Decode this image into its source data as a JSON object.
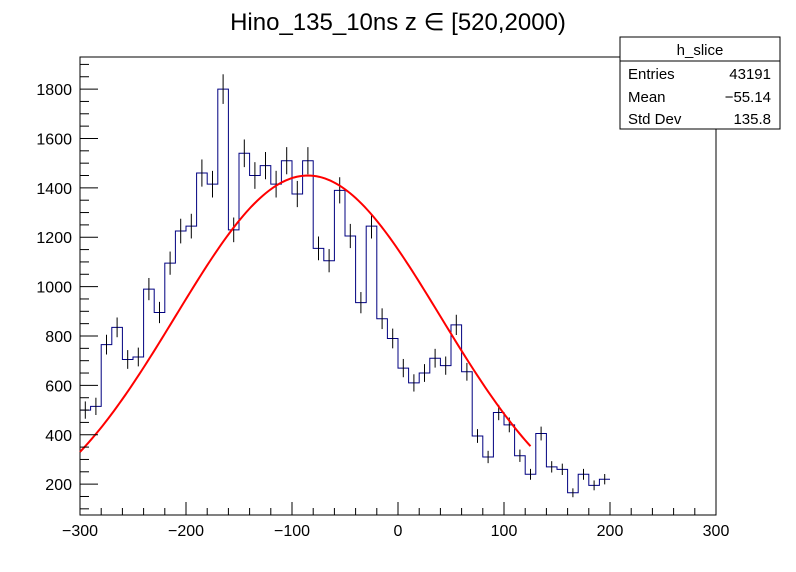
{
  "chart_data": {
    "type": "histogram",
    "title": "Hino_135_10ns z  ∈ [520,2000)",
    "xlabel": "",
    "ylabel": "",
    "xlim": [
      -300,
      300
    ],
    "ylim": [
      75,
      1930
    ],
    "x_ticks": [
      -300,
      -200,
      -100,
      0,
      100,
      200,
      300
    ],
    "x_tick_labels": [
      "−300",
      "−200",
      "−100",
      "0",
      "100",
      "200",
      "300"
    ],
    "y_ticks": [
      200,
      400,
      600,
      800,
      1000,
      1200,
      1400,
      1600,
      1800
    ],
    "y_tick_labels": [
      "200",
      "400",
      "600",
      "800",
      "1000",
      "1200",
      "1400",
      "1600",
      "1800"
    ],
    "bin_width": 10,
    "bin_edges_start": -300,
    "series": [
      {
        "name": "h_slice",
        "color": "#000080",
        "values": [
          500,
          515,
          765,
          835,
          705,
          715,
          990,
          895,
          1095,
          1225,
          1245,
          1460,
          1415,
          1800,
          1230,
          1540,
          1450,
          1490,
          1415,
          1510,
          1375,
          1510,
          1155,
          1105,
          1390,
          1205,
          935,
          1245,
          870,
          790,
          670,
          610,
          650,
          710,
          680,
          845,
          655,
          395,
          310,
          490,
          440,
          315,
          240,
          405,
          270,
          260,
          165,
          240,
          195,
          220
        ],
        "errors": [
          35,
          35,
          40,
          40,
          38,
          38,
          45,
          43,
          47,
          50,
          50,
          55,
          54,
          60,
          50,
          56,
          54,
          55,
          54,
          55,
          53,
          55,
          48,
          47,
          53,
          49,
          43,
          50,
          42,
          40,
          37,
          35,
          36,
          38,
          37,
          41,
          36,
          28,
          25,
          31,
          30,
          25,
          22,
          28,
          23,
          23,
          18,
          22,
          20,
          21
        ]
      },
      {
        "name": "gaussian fit",
        "color": "#ff0000",
        "fit": {
          "constant": 1450,
          "mean": -85,
          "sigma": 125,
          "x_min": -300,
          "x_max": 125
        }
      }
    ],
    "stats_box": {
      "title": "h_slice",
      "rows": [
        {
          "label": "Entries",
          "value": "43191"
        },
        {
          "label": "Mean",
          "value": "−55.14"
        },
        {
          "label": "Std Dev",
          "value": "135.8"
        }
      ]
    }
  }
}
